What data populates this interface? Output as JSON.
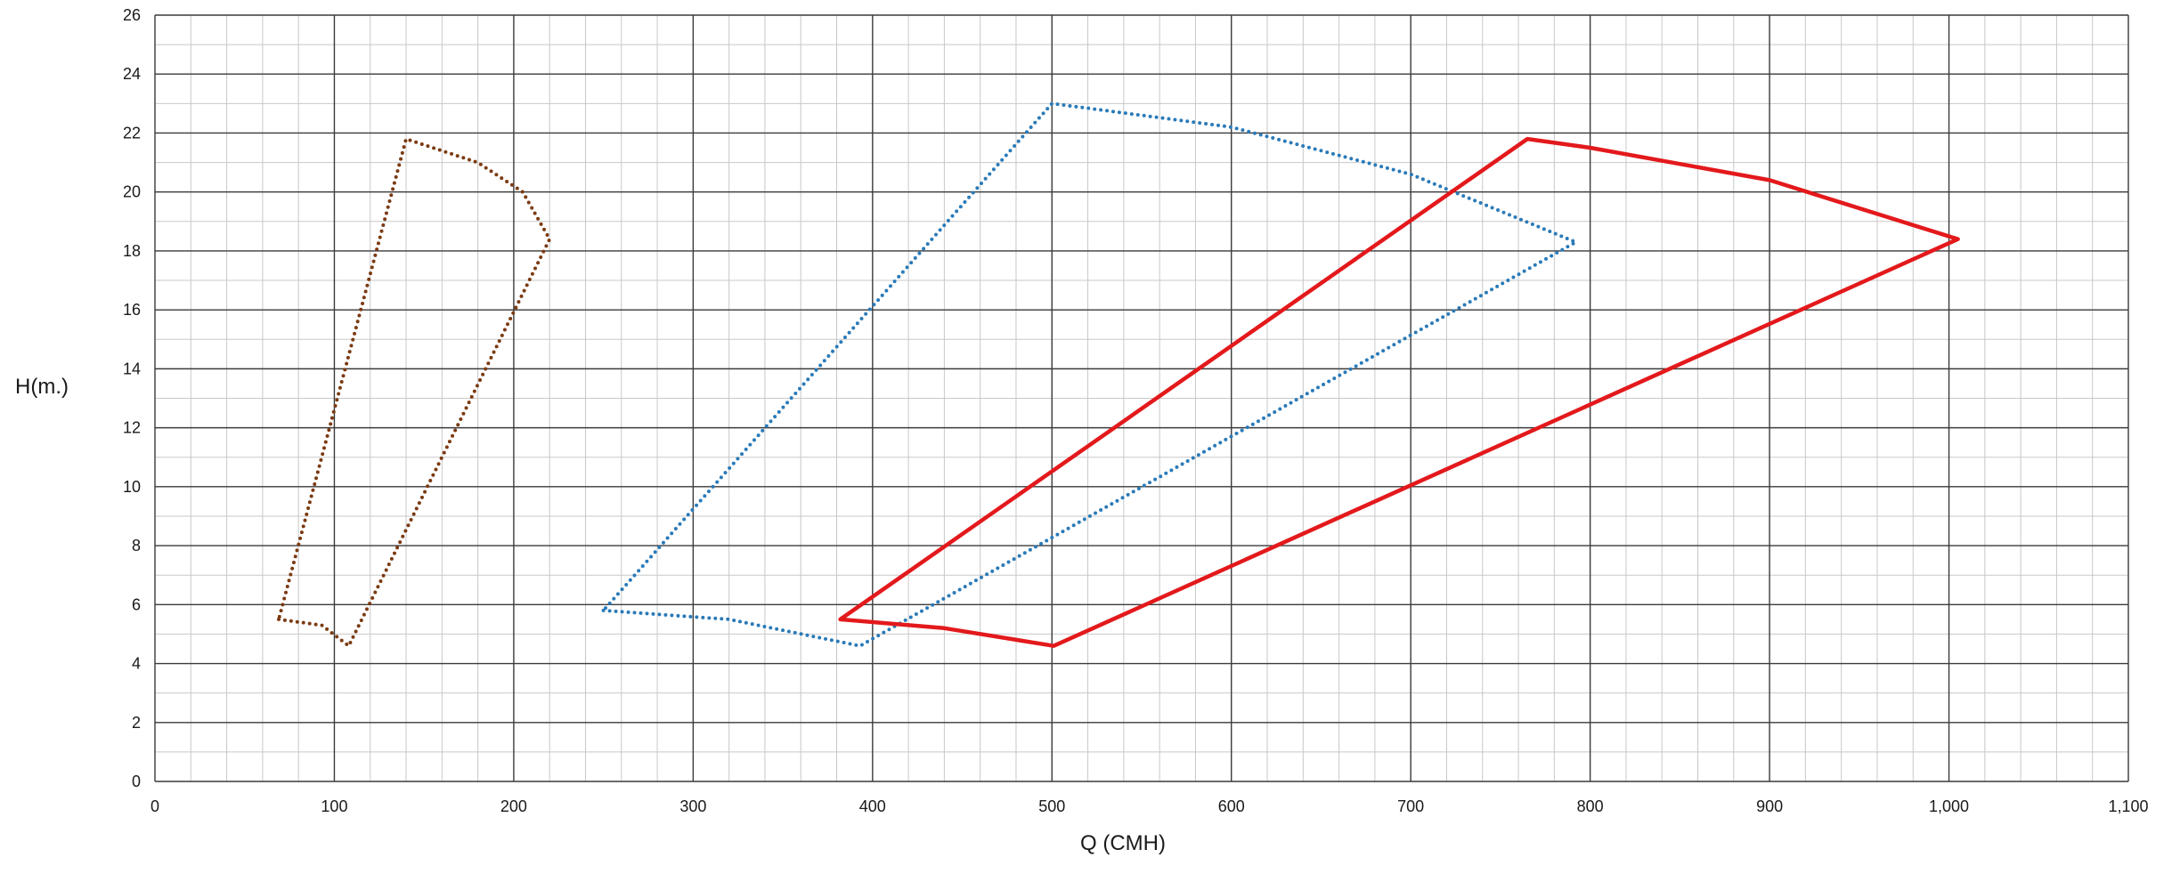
{
  "chart_data": {
    "type": "line",
    "xlabel": "Q (CMH)",
    "ylabel": "H(m.)",
    "xlim": [
      0,
      1100
    ],
    "ylim": [
      0,
      26
    ],
    "x_major_step": 100,
    "x_minor_step": 20,
    "y_major_step": 2,
    "y_minor_step": 1,
    "grid": true,
    "legend": "none",
    "x_ticks": [
      "0",
      "100",
      "200",
      "300",
      "400",
      "500",
      "600",
      "700",
      "800",
      "900",
      "1,000",
      "1,100"
    ],
    "y_ticks": [
      "0",
      "2",
      "4",
      "6",
      "8",
      "10",
      "12",
      "14",
      "16",
      "18",
      "20",
      "22",
      "24",
      "26"
    ],
    "series": [
      {
        "color": "#7b3a12",
        "style": "dotted",
        "points": [
          [
            69,
            5.5
          ],
          [
            93,
            5.3
          ],
          [
            108,
            4.6
          ],
          [
            220,
            18.4
          ],
          [
            205,
            20.0
          ],
          [
            180,
            21.0
          ],
          [
            140,
            21.8
          ],
          [
            69,
            5.5
          ]
        ]
      },
      {
        "color": "#2a7ab8",
        "style": "dotted",
        "points": [
          [
            250,
            5.8
          ],
          [
            320,
            5.5
          ],
          [
            393,
            4.6
          ],
          [
            792,
            18.3
          ],
          [
            700,
            20.6
          ],
          [
            600,
            22.2
          ],
          [
            500,
            23.0
          ],
          [
            250,
            5.8
          ]
        ]
      },
      {
        "color": "#e3191c",
        "style": "solid",
        "points": [
          [
            382,
            5.5
          ],
          [
            440,
            5.2
          ],
          [
            501,
            4.6
          ],
          [
            1005,
            18.4
          ],
          [
            900,
            20.4
          ],
          [
            800,
            21.5
          ],
          [
            765,
            21.8
          ],
          [
            382,
            5.5
          ]
        ]
      }
    ]
  }
}
